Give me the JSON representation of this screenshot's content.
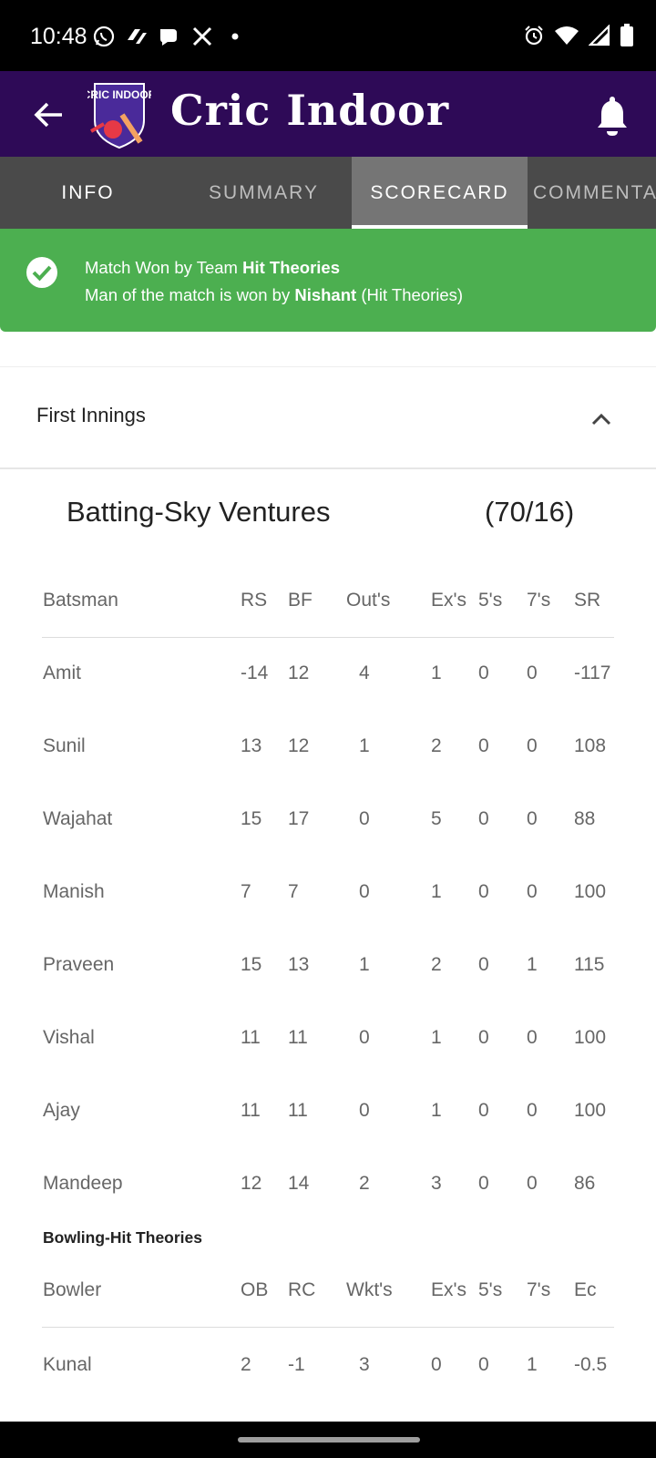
{
  "status_bar": {
    "time": "10:48",
    "notification_icons": [
      "whatsapp-icon",
      "app-icon",
      "chat-icon",
      "x-icon",
      "dot-icon"
    ],
    "system_icons": [
      "alarm-icon",
      "wifi-icon",
      "signal-icon",
      "battery-icon"
    ]
  },
  "appbar": {
    "title": "Cric Indoor",
    "logo_text": "CRIC INDOOR",
    "colors": {
      "background": "#2e0a57"
    }
  },
  "tabs": [
    {
      "label": "INFO"
    },
    {
      "label": "SUMMARY"
    },
    {
      "label": "SCORECARD"
    },
    {
      "label": "COMMENTA"
    }
  ],
  "active_tab": "SCORECARD",
  "result_banner": {
    "line1_prefix": "Match Won by Team ",
    "line1_team": "Hit Theories",
    "line2_prefix": "Man of the match is won by ",
    "line2_player": "Nishant",
    "line2_suffix": " (Hit Theories)",
    "color": "#4caf50"
  },
  "innings": {
    "title": "First Innings",
    "batting_title": "Batting-Sky Ventures",
    "batting_score": "(70/16)",
    "batting_headers": [
      "Batsman",
      "RS",
      "BF",
      "Out's",
      "Ex's",
      "5's",
      "7's",
      "SR"
    ],
    "batting_rows": [
      [
        "Amit",
        "-14",
        "12",
        "4",
        "1",
        "0",
        "0",
        "-117"
      ],
      [
        "Sunil",
        "13",
        "12",
        "1",
        "2",
        "0",
        "0",
        "108"
      ],
      [
        "Wajahat",
        "15",
        "17",
        "0",
        "5",
        "0",
        "0",
        "88"
      ],
      [
        "Manish",
        "7",
        "7",
        "0",
        "1",
        "0",
        "0",
        "100"
      ],
      [
        "Praveen",
        "15",
        "13",
        "1",
        "2",
        "0",
        "1",
        "115"
      ],
      [
        "Vishal",
        "11",
        "11",
        "0",
        "1",
        "0",
        "0",
        "100"
      ],
      [
        "Ajay",
        "11",
        "11",
        "0",
        "1",
        "0",
        "0",
        "100"
      ],
      [
        "Mandeep",
        "12",
        "14",
        "2",
        "3",
        "0",
        "0",
        "86"
      ]
    ],
    "bowling_title": "Bowling-Hit Theories",
    "bowling_headers": [
      "Bowler",
      "OB",
      "RC",
      "Wkt's",
      "Ex's",
      "5's",
      "7's",
      "Ec"
    ],
    "bowling_rows": [
      [
        "Kunal",
        "2",
        "-1",
        "3",
        "0",
        "0",
        "1",
        "-0.5"
      ]
    ]
  }
}
